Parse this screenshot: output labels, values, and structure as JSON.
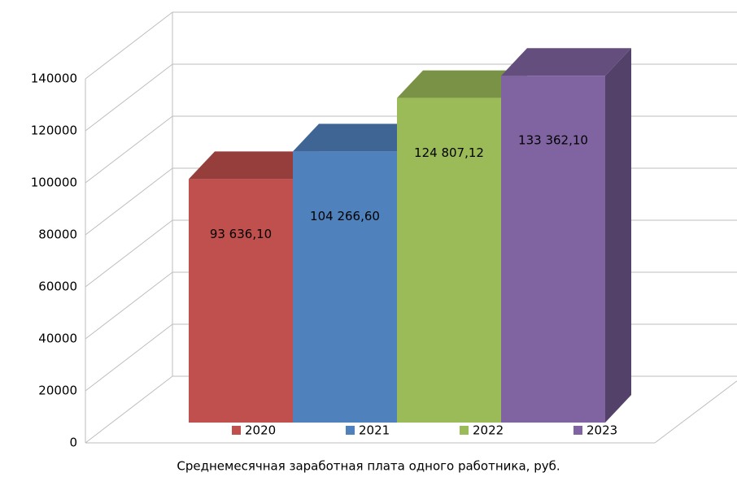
{
  "chart_data": {
    "type": "bar3d",
    "x_label": "Среднемесячная заработная плата одного работника, руб.",
    "categories": [
      null
    ],
    "series": [
      {
        "name": "2020",
        "color": "#c0504d",
        "values": [
          93636.1
        ],
        "value_labels": [
          "93 636,10"
        ]
      },
      {
        "name": "2021",
        "color": "#4f81bd",
        "values": [
          104266.6
        ],
        "value_labels": [
          "104 266,60"
        ]
      },
      {
        "name": "2022",
        "color": "#9bbb59",
        "values": [
          124807.12
        ],
        "value_labels": [
          "124 807,12"
        ]
      },
      {
        "name": "2023",
        "color": "#8064a2",
        "values": [
          133362.1
        ],
        "value_labels": [
          "133 362,10"
        ]
      }
    ],
    "ylim": [
      0,
      140000
    ],
    "yticks": [
      0,
      20000,
      40000,
      60000,
      80000,
      100000,
      120000,
      140000
    ],
    "grid": true,
    "legend": "bottom"
  }
}
